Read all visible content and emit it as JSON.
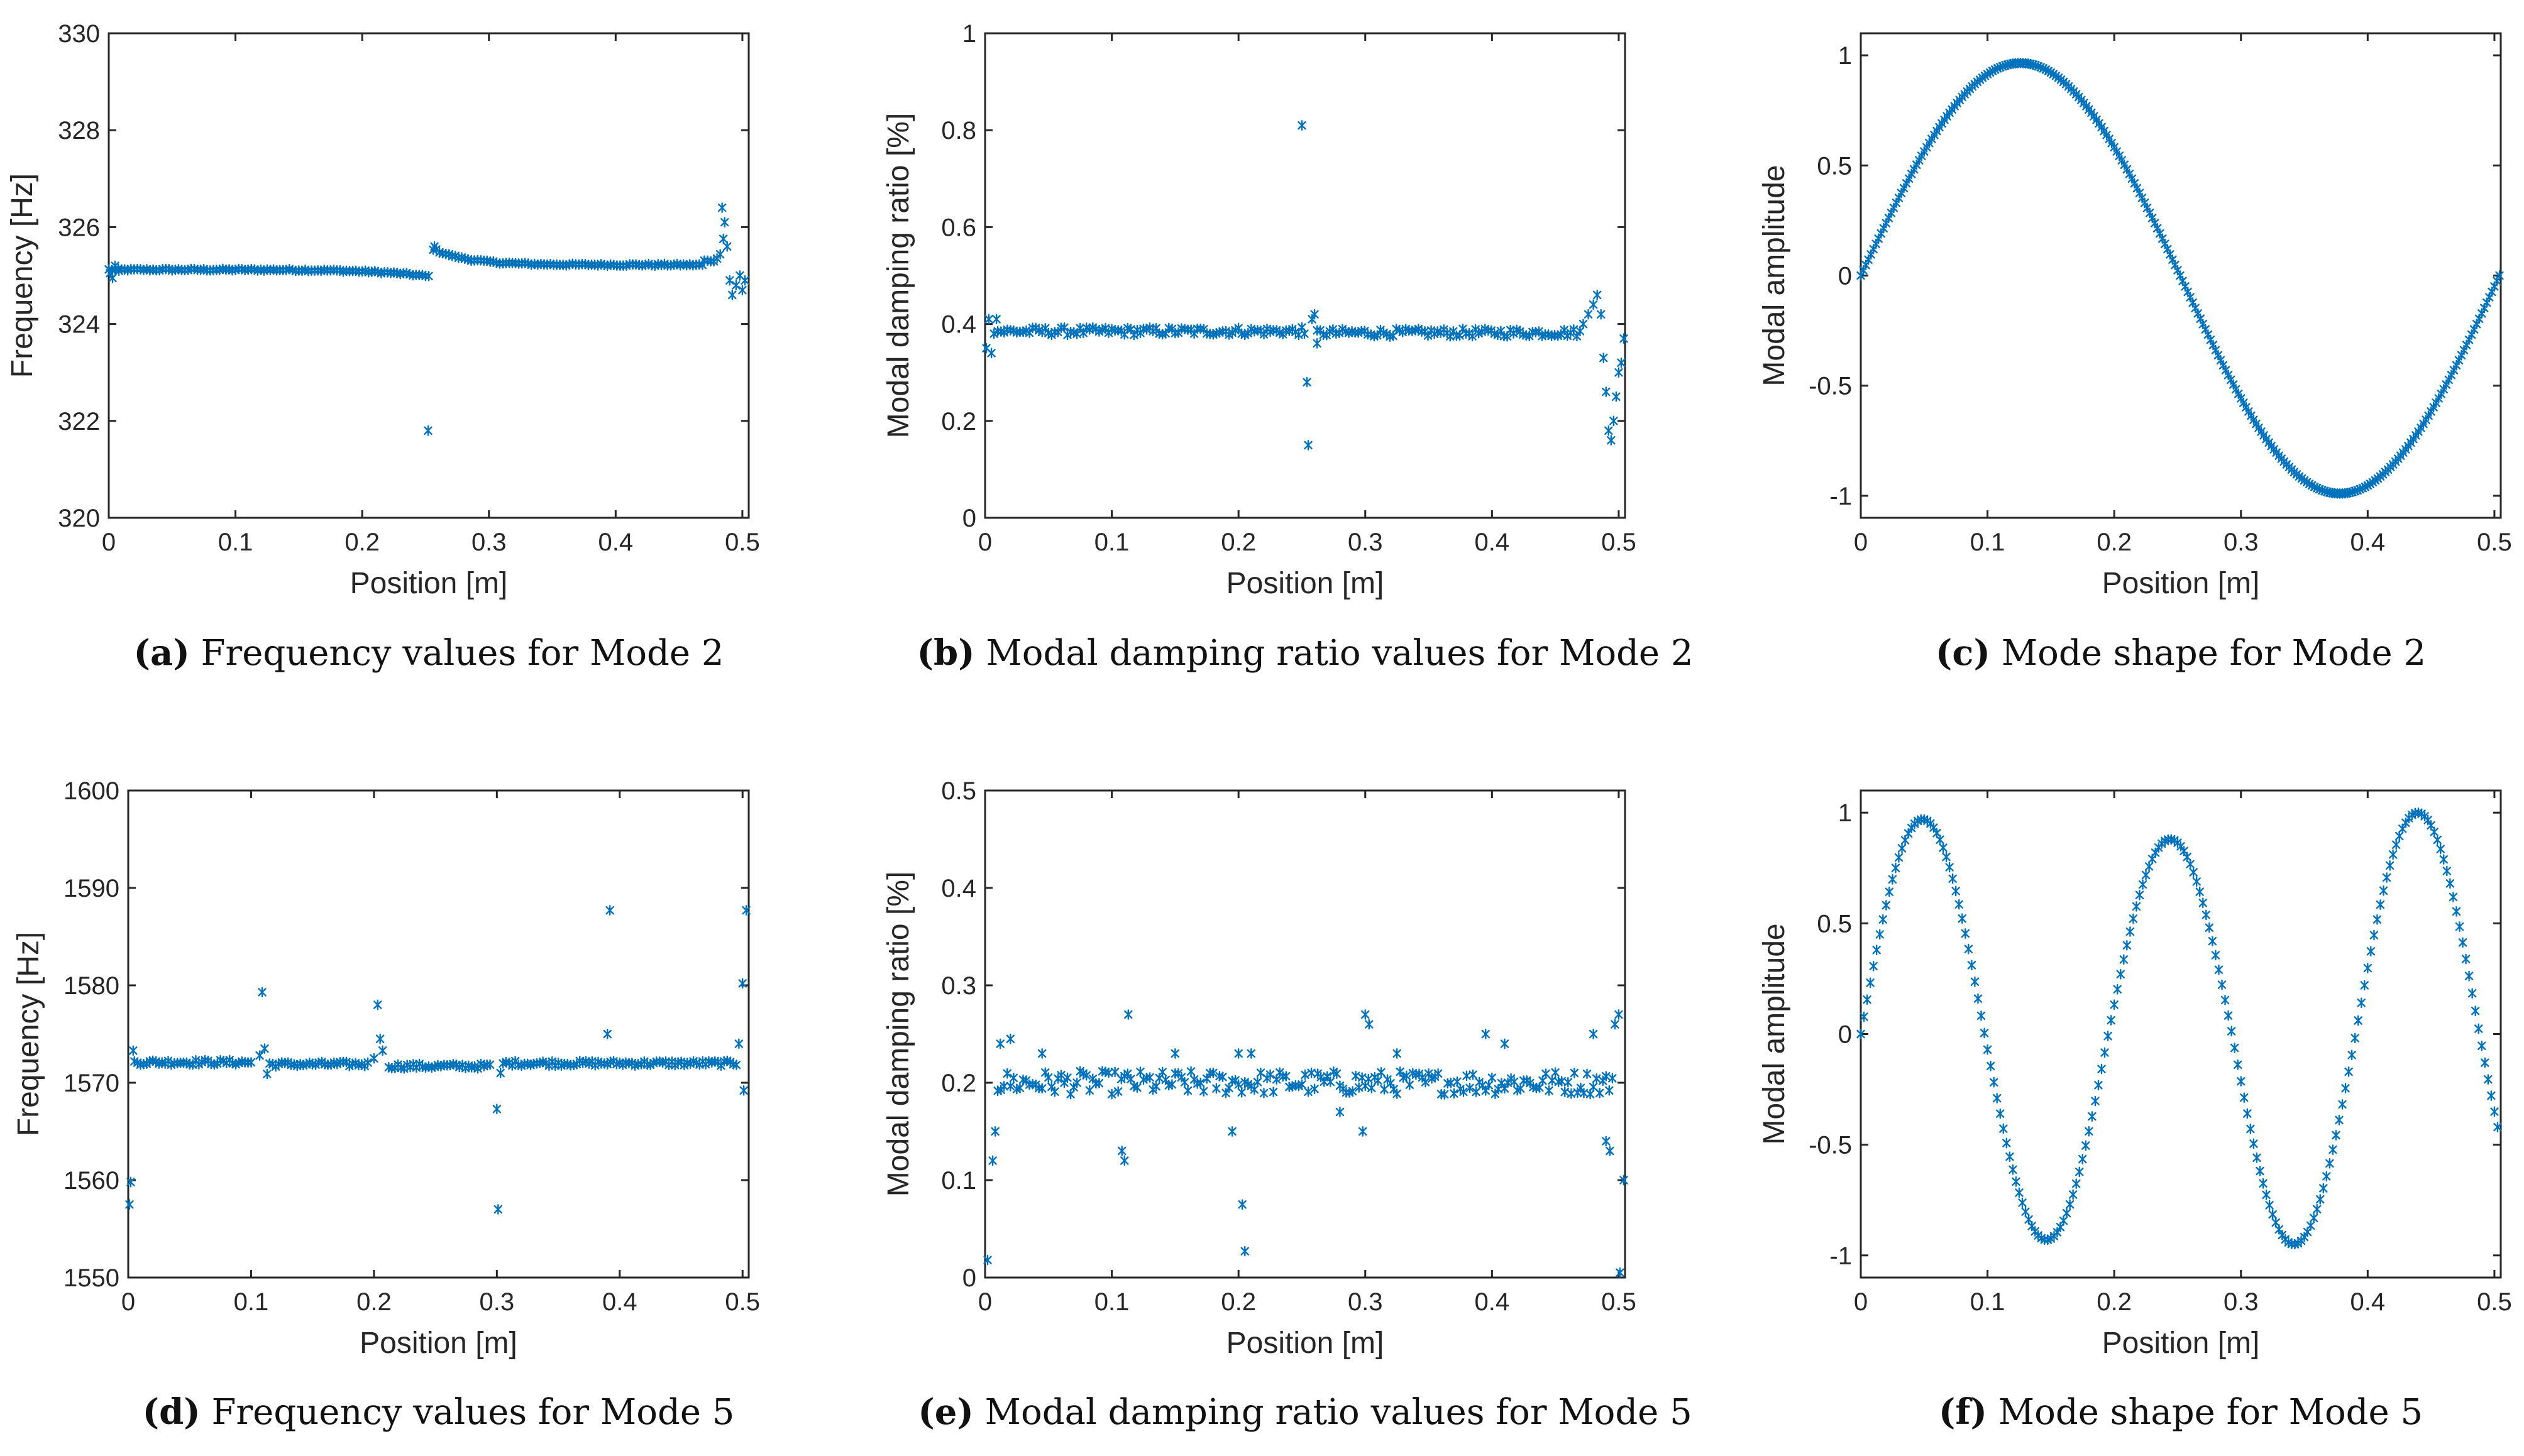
{
  "figure": {
    "marker_color": "#0072BD",
    "axis_color": "#262626"
  },
  "chart_data": [
    {
      "type": "scatter",
      "panel": "a",
      "caption_letter": "(a)",
      "caption_text": "Frequency values for Mode 2",
      "xlabel": "Position [m]",
      "ylabel": "Frequency [Hz]",
      "xlim": [
        0,
        0.505
      ],
      "ylim": [
        320,
        330
      ],
      "xticks": [
        0,
        0.1,
        0.2,
        0.3,
        0.4,
        0.5
      ],
      "xtick_labels": [
        "0",
        "0.1",
        "0.2",
        "0.3",
        "0.4",
        "0.5"
      ],
      "yticks": [
        320,
        322,
        324,
        326,
        328,
        330
      ],
      "ytick_labels": [
        "320",
        "322",
        "324",
        "326",
        "328",
        "330"
      ],
      "marker": "x",
      "series": [
        {
          "name": "Mode 2 frequency",
          "curve": {
            "kind": "segments",
            "segments": [
              {
                "from": 0.0,
                "to": 0.253,
                "base": 325.12,
                "end_value": 324.98
              },
              {
                "from": 0.256,
                "to": 0.47,
                "base": 325.22,
                "start_value": 325.55
              },
              {
                "from": 0.47,
                "to": 0.487,
                "base": 325.3,
                "end_value": 326.3
              }
            ],
            "step": 0.0025,
            "noise": 0.02
          },
          "extra_points": [
            {
              "x": 0.001,
              "y": 325.05
            },
            {
              "x": 0.003,
              "y": 324.95
            },
            {
              "x": 0.005,
              "y": 325.2
            },
            {
              "x": 0.008,
              "y": 325.1
            },
            {
              "x": 0.252,
              "y": 321.8
            },
            {
              "x": 0.257,
              "y": 325.6
            },
            {
              "x": 0.484,
              "y": 326.4
            },
            {
              "x": 0.486,
              "y": 326.1
            },
            {
              "x": 0.488,
              "y": 325.6
            },
            {
              "x": 0.49,
              "y": 324.9
            },
            {
              "x": 0.492,
              "y": 324.6
            },
            {
              "x": 0.495,
              "y": 324.8
            },
            {
              "x": 0.498,
              "y": 325.0
            },
            {
              "x": 0.5,
              "y": 324.7
            },
            {
              "x": 0.502,
              "y": 324.9
            }
          ]
        }
      ]
    },
    {
      "type": "scatter",
      "panel": "b",
      "caption_letter": "(b)",
      "caption_text": "Modal damping ratio values for Mode 2",
      "xlabel": "Position [m]",
      "ylabel": "Modal damping ratio [%]",
      "xlim": [
        0,
        0.505
      ],
      "ylim": [
        0,
        1
      ],
      "xticks": [
        0,
        0.1,
        0.2,
        0.3,
        0.4,
        0.5
      ],
      "xtick_labels": [
        "0",
        "0.1",
        "0.2",
        "0.3",
        "0.4",
        "0.5"
      ],
      "yticks": [
        0,
        0.2,
        0.4,
        0.6,
        0.8,
        1
      ],
      "ytick_labels": [
        "0",
        "0.2",
        "0.4",
        "0.6",
        "0.8",
        "1"
      ],
      "marker": "x",
      "series": [
        {
          "name": "Mode 2 damping ratio",
          "curve": {
            "kind": "segments",
            "segments": [
              {
                "from": 0.01,
                "to": 0.25,
                "base": 0.385
              },
              {
                "from": 0.262,
                "to": 0.47,
                "base": 0.382
              }
            ],
            "step": 0.0025,
            "noise": 0.008
          },
          "extra_points": [
            {
              "x": 0.001,
              "y": 0.35
            },
            {
              "x": 0.003,
              "y": 0.41
            },
            {
              "x": 0.005,
              "y": 0.34
            },
            {
              "x": 0.007,
              "y": 0.38
            },
            {
              "x": 0.009,
              "y": 0.41
            },
            {
              "x": 0.25,
              "y": 0.81
            },
            {
              "x": 0.252,
              "y": 0.38
            },
            {
              "x": 0.254,
              "y": 0.28
            },
            {
              "x": 0.255,
              "y": 0.15
            },
            {
              "x": 0.258,
              "y": 0.41
            },
            {
              "x": 0.26,
              "y": 0.42
            },
            {
              "x": 0.262,
              "y": 0.36
            },
            {
              "x": 0.472,
              "y": 0.4
            },
            {
              "x": 0.476,
              "y": 0.42
            },
            {
              "x": 0.48,
              "y": 0.44
            },
            {
              "x": 0.483,
              "y": 0.46
            },
            {
              "x": 0.486,
              "y": 0.42
            },
            {
              "x": 0.488,
              "y": 0.33
            },
            {
              "x": 0.49,
              "y": 0.26
            },
            {
              "x": 0.492,
              "y": 0.18
            },
            {
              "x": 0.494,
              "y": 0.16
            },
            {
              "x": 0.496,
              "y": 0.2
            },
            {
              "x": 0.498,
              "y": 0.25
            },
            {
              "x": 0.5,
              "y": 0.3
            },
            {
              "x": 0.502,
              "y": 0.32
            },
            {
              "x": 0.504,
              "y": 0.37
            }
          ]
        }
      ]
    },
    {
      "type": "scatter",
      "panel": "c",
      "caption_letter": "(c)",
      "caption_text": "Mode shape for Mode 2",
      "xlabel": "Position [m]",
      "ylabel": "Modal amplitude",
      "xlim": [
        0,
        0.505
      ],
      "ylim": [
        -1.1,
        1.1
      ],
      "xticks": [
        0,
        0.1,
        0.2,
        0.3,
        0.4,
        0.5
      ],
      "xtick_labels": [
        "0",
        "0.1",
        "0.2",
        "0.3",
        "0.4",
        "0.5"
      ],
      "yticks": [
        -1,
        -0.5,
        0,
        0.5,
        1
      ],
      "ytick_labels": [
        "-1",
        "-0.5",
        "0",
        "0.5",
        "1"
      ],
      "marker": "x",
      "series": [
        {
          "name": "Mode 2 shape",
          "curve": {
            "kind": "sine",
            "from": 0.0,
            "to": 0.504,
            "wavelength": 0.504,
            "amplitude_pos": 0.965,
            "amplitude_neg": 0.99,
            "step": 0.002,
            "noise": 0
          }
        }
      ]
    },
    {
      "type": "scatter",
      "panel": "d",
      "caption_letter": "(d)",
      "caption_text": "Frequency values for Mode 5",
      "xlabel": "Position [m]",
      "ylabel": "Frequency [Hz]",
      "xlim": [
        0,
        0.505
      ],
      "ylim": [
        1550,
        1600
      ],
      "xticks": [
        0,
        0.1,
        0.2,
        0.3,
        0.4,
        0.5
      ],
      "xtick_labels": [
        "0",
        "0.1",
        "0.2",
        "0.3",
        "0.4",
        "0.5"
      ],
      "yticks": [
        1550,
        1560,
        1570,
        1580,
        1590,
        1600
      ],
      "ytick_labels": [
        "1550",
        "1560",
        "1570",
        "1580",
        "1590",
        "1600"
      ],
      "marker": "x",
      "series": [
        {
          "name": "Mode 5 frequency",
          "curve": {
            "kind": "segments",
            "segments": [
              {
                "from": 0.005,
                "to": 0.1,
                "base": 1572.1
              },
              {
                "from": 0.115,
                "to": 0.195,
                "base": 1571.9
              },
              {
                "from": 0.212,
                "to": 0.295,
                "base": 1571.7
              },
              {
                "from": 0.305,
                "to": 0.495,
                "base": 1572.0
              }
            ],
            "step": 0.0025,
            "noise": 0.25
          },
          "extra_points": [
            {
              "x": 0.001,
              "y": 1557.5
            },
            {
              "x": 0.002,
              "y": 1559.8
            },
            {
              "x": 0.004,
              "y": 1573.3
            },
            {
              "x": 0.107,
              "y": 1572.8
            },
            {
              "x": 0.109,
              "y": 1579.3
            },
            {
              "x": 0.111,
              "y": 1573.5
            },
            {
              "x": 0.113,
              "y": 1570.9
            },
            {
              "x": 0.2,
              "y": 1572.5
            },
            {
              "x": 0.203,
              "y": 1578.0
            },
            {
              "x": 0.205,
              "y": 1574.5
            },
            {
              "x": 0.207,
              "y": 1573.3
            },
            {
              "x": 0.3,
              "y": 1567.3
            },
            {
              "x": 0.301,
              "y": 1557.0
            },
            {
              "x": 0.303,
              "y": 1571.0
            },
            {
              "x": 0.39,
              "y": 1575.0
            },
            {
              "x": 0.392,
              "y": 1587.7
            },
            {
              "x": 0.497,
              "y": 1574.0
            },
            {
              "x": 0.5,
              "y": 1580.2
            },
            {
              "x": 0.501,
              "y": 1569.2
            },
            {
              "x": 0.503,
              "y": 1587.7
            }
          ]
        }
      ]
    },
    {
      "type": "scatter",
      "panel": "e",
      "caption_letter": "(e)",
      "caption_text": "Modal damping ratio values for Mode 5",
      "xlabel": "Position [m]",
      "ylabel": "Modal damping ratio [%]",
      "xlim": [
        0,
        0.505
      ],
      "ylim": [
        0,
        0.5
      ],
      "xticks": [
        0,
        0.1,
        0.2,
        0.3,
        0.4,
        0.5
      ],
      "xtick_labels": [
        "0",
        "0.1",
        "0.2",
        "0.3",
        "0.4",
        "0.5"
      ],
      "yticks": [
        0,
        0.1,
        0.2,
        0.3,
        0.4,
        0.5
      ],
      "ytick_labels": [
        "0",
        "0.1",
        "0.2",
        "0.3",
        "0.4",
        "0.5"
      ],
      "marker": "x",
      "series": [
        {
          "name": "Mode 5 damping ratio",
          "curve": {
            "kind": "segments",
            "segments": [
              {
                "from": 0.01,
                "to": 0.495,
                "base": 0.2
              }
            ],
            "step": 0.0025,
            "noise": 0.012
          },
          "extra_points": [
            {
              "x": 0.002,
              "y": 0.018
            },
            {
              "x": 0.006,
              "y": 0.12
            },
            {
              "x": 0.008,
              "y": 0.15
            },
            {
              "x": 0.012,
              "y": 0.24
            },
            {
              "x": 0.02,
              "y": 0.245
            },
            {
              "x": 0.045,
              "y": 0.23
            },
            {
              "x": 0.108,
              "y": 0.13
            },
            {
              "x": 0.11,
              "y": 0.12
            },
            {
              "x": 0.113,
              "y": 0.27
            },
            {
              "x": 0.15,
              "y": 0.23
            },
            {
              "x": 0.195,
              "y": 0.15
            },
            {
              "x": 0.2,
              "y": 0.23
            },
            {
              "x": 0.203,
              "y": 0.075
            },
            {
              "x": 0.205,
              "y": 0.027
            },
            {
              "x": 0.21,
              "y": 0.23
            },
            {
              "x": 0.28,
              "y": 0.17
            },
            {
              "x": 0.298,
              "y": 0.15
            },
            {
              "x": 0.3,
              "y": 0.27
            },
            {
              "x": 0.303,
              "y": 0.26
            },
            {
              "x": 0.325,
              "y": 0.23
            },
            {
              "x": 0.395,
              "y": 0.25
            },
            {
              "x": 0.41,
              "y": 0.24
            },
            {
              "x": 0.48,
              "y": 0.25
            },
            {
              "x": 0.49,
              "y": 0.14
            },
            {
              "x": 0.493,
              "y": 0.13
            },
            {
              "x": 0.497,
              "y": 0.26
            },
            {
              "x": 0.5,
              "y": 0.27
            },
            {
              "x": 0.501,
              "y": 0.005
            },
            {
              "x": 0.504,
              "y": 0.1
            }
          ]
        }
      ]
    },
    {
      "type": "scatter",
      "panel": "f",
      "caption_letter": "(f)",
      "caption_text": "Mode shape for Mode 5",
      "xlabel": "Position [m]",
      "ylabel": "Modal amplitude",
      "xlim": [
        0,
        0.505
      ],
      "ylim": [
        -1.1,
        1.1
      ],
      "xticks": [
        0,
        0.1,
        0.2,
        0.3,
        0.4,
        0.5
      ],
      "xtick_labels": [
        "0",
        "0.1",
        "0.2",
        "0.3",
        "0.4",
        "0.5"
      ],
      "yticks": [
        -1,
        -0.5,
        0,
        0.5,
        1
      ],
      "ytick_labels": [
        "-1",
        "-0.5",
        "0",
        "0.5",
        "1"
      ],
      "marker": "x",
      "series": [
        {
          "name": "Mode 5 shape",
          "curve": {
            "kind": "sine",
            "from": 0.0,
            "to": 0.504,
            "wavelength": 0.1953,
            "amplitude_pos": 0.95,
            "amplitude_neg": 0.93,
            "step": 0.0025,
            "noise": 0,
            "peak_scale": [
              0.97,
              0.88,
              1.0
            ],
            "trough_scale": [
              0.93,
              0.95
            ]
          }
        }
      ]
    }
  ]
}
